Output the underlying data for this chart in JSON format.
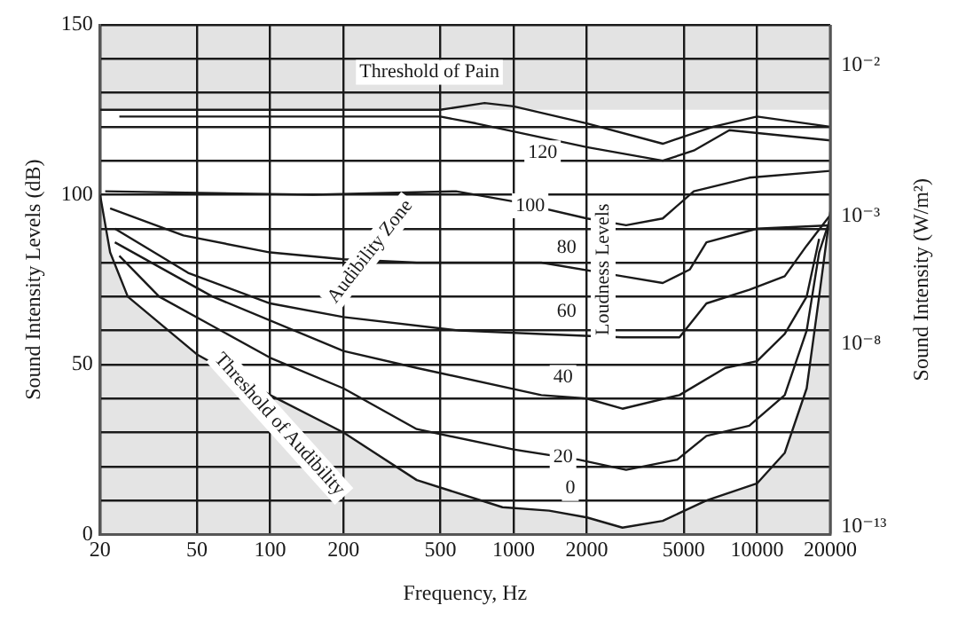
{
  "chart_data": {
    "type": "line",
    "xlabel": "Frequency, Hz",
    "ylabel": "Sound Intensity Levels (dB)",
    "y2label": "Sound Intensity (W/m²)",
    "log": "x",
    "grid": true,
    "legend": false,
    "marker": "none",
    "line_style": "solid",
    "xlim": [
      20,
      20000
    ],
    "xticks": [
      20,
      50,
      100,
      200,
      500,
      1000,
      2000,
      5000,
      10000,
      20000
    ],
    "ylim": [
      0,
      150
    ],
    "yticks": [
      0,
      {
        "value": 10,
        "label": null
      },
      {
        "value": 20,
        "label": null
      },
      {
        "value": 30,
        "label": null
      },
      {
        "value": 40,
        "label": null
      },
      50,
      {
        "value": 60,
        "label": null
      },
      {
        "value": 70,
        "label": null
      },
      {
        "value": 80,
        "label": null
      },
      {
        "value": 90,
        "label": null
      },
      100,
      {
        "value": 110,
        "label": null
      },
      {
        "value": 120,
        "label": null
      },
      {
        "value": 130,
        "label": null
      },
      {
        "value": 140,
        "label": null
      },
      150
    ],
    "series": [
      {
        "color": "#1a1a1a",
        "x": [
          20,
          500,
          760,
          1000,
          2000,
          4100,
          6600,
          10000,
          20000
        ],
        "values": [
          125,
          125,
          127,
          126,
          121,
          115,
          120,
          123,
          120
        ]
      },
      {
        "color": "#1a1a1a",
        "x": [
          24,
          500,
          700,
          2000,
          4100,
          5500,
          7700,
          20000
        ],
        "values": [
          123,
          123,
          121,
          114,
          110,
          113,
          119,
          116
        ]
      },
      {
        "color": "#1a1a1a",
        "x": [
          21,
          150,
          580,
          1000,
          2000,
          2900,
          4100,
          5500,
          9300,
          20000
        ],
        "values": [
          101,
          100,
          101,
          98,
          93,
          91,
          93,
          101,
          105,
          107
        ]
      },
      {
        "color": "#1a1a1a",
        "x": [
          22,
          44,
          100,
          200,
          400,
          1300,
          2800,
          4100,
          5300,
          6200,
          10000,
          20000
        ],
        "values": [
          96,
          88,
          83,
          81,
          80,
          80,
          76,
          74,
          78,
          86,
          90,
          91
        ]
      },
      {
        "color": "#1a1a1a",
        "x": [
          23,
          46,
          100,
          200,
          600,
          1300,
          2800,
          4800,
          6200,
          9300,
          13000,
          16000,
          20000
        ],
        "values": [
          90,
          77,
          68,
          64,
          60,
          59,
          58,
          58,
          68,
          72,
          76,
          85,
          94
        ]
      },
      {
        "color": "#1a1a1a",
        "x": [
          23,
          58,
          200,
          400,
          1300,
          2000,
          2800,
          4800,
          7400,
          10000,
          13000,
          16000,
          18000
        ],
        "values": [
          86,
          70,
          54,
          49,
          41,
          40,
          37,
          41,
          49,
          51,
          59,
          70,
          87
        ]
      },
      {
        "color": "#1a1a1a",
        "x": [
          24,
          35,
          100,
          200,
          400,
          1000,
          1850,
          2900,
          4700,
          6200,
          9300,
          13000,
          16000,
          18000,
          20000
        ],
        "values": [
          82,
          70,
          52,
          43,
          31,
          25,
          22,
          19,
          22,
          29,
          32,
          41,
          60,
          83,
          93
        ]
      },
      {
        "type": "area",
        "color": "#1a1a1a",
        "x": [
          20,
          22,
          26,
          50,
          100,
          200,
          400,
          900,
          1400,
          2000,
          2800,
          4100,
          6200,
          10000,
          13000,
          16000,
          18000,
          20000
        ],
        "values": [
          100,
          83,
          70,
          53,
          41,
          30,
          16,
          8,
          7,
          5,
          2,
          4,
          10,
          15,
          24,
          43,
          70,
          95
        ]
      }
    ],
    "bands": [
      {
        "axis": "y",
        "from": 125,
        "to": 150,
        "color": "#e3e3e3"
      }
    ],
    "annotations": [
      "Threshold of Pain",
      "Audibility Zone",
      "Loudness Levels",
      "Threshold of Audibility",
      "120",
      "100",
      "80",
      "60",
      "40",
      "20",
      "0",
      "10⁻²",
      "10⁻³",
      "10⁻⁸",
      "10⁻¹³"
    ]
  }
}
